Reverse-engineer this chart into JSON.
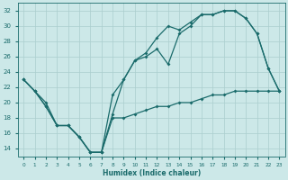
{
  "xlabel": "Humidex (Indice chaleur)",
  "bg_color": "#cce8e8",
  "grid_color": "#aacece",
  "line_color": "#1a6b6b",
  "xlim": [
    -0.5,
    23.5
  ],
  "ylim": [
    13,
    33
  ],
  "yticks": [
    14,
    16,
    18,
    20,
    22,
    24,
    26,
    28,
    30,
    32
  ],
  "xticks": [
    0,
    1,
    2,
    3,
    4,
    5,
    6,
    7,
    8,
    9,
    10,
    11,
    12,
    13,
    14,
    15,
    16,
    17,
    18,
    19,
    20,
    21,
    22,
    23
  ],
  "line1_x": [
    0,
    1,
    2,
    3,
    4,
    5,
    6,
    7,
    8,
    9,
    10,
    11,
    12,
    13,
    14,
    15,
    16,
    17,
    18,
    19,
    20,
    21,
    22,
    23
  ],
  "line1_y": [
    23,
    21.5,
    19.5,
    17,
    17,
    15.5,
    13.5,
    13.5,
    18.5,
    23,
    25.5,
    26,
    27,
    25,
    29,
    30,
    31.5,
    31.5,
    32,
    32,
    31,
    29,
    24.5,
    21.5
  ],
  "line2_x": [
    0,
    1,
    2,
    3,
    4,
    5,
    6,
    7,
    8,
    9,
    10,
    11,
    12,
    13,
    14,
    15,
    16,
    17,
    18,
    19,
    20,
    21,
    22,
    23
  ],
  "line2_y": [
    23,
    21.5,
    19.5,
    17,
    17,
    15.5,
    13.5,
    13.5,
    21,
    23,
    25.5,
    26.5,
    28.5,
    30,
    29.5,
    30.5,
    31.5,
    31.5,
    32,
    32,
    31,
    29,
    24.5,
    21.5
  ],
  "line3_x": [
    0,
    1,
    2,
    3,
    4,
    5,
    6,
    7,
    8,
    9,
    10,
    11,
    12,
    13,
    14,
    15,
    16,
    17,
    18,
    19,
    20,
    21,
    22,
    23
  ],
  "line3_y": [
    23,
    21.5,
    20,
    17,
    17,
    15.5,
    13.5,
    13.5,
    18,
    18,
    18.5,
    19,
    19.5,
    19.5,
    20,
    20,
    20.5,
    21,
    21,
    21.5,
    21.5,
    21.5,
    21.5,
    21.5
  ]
}
